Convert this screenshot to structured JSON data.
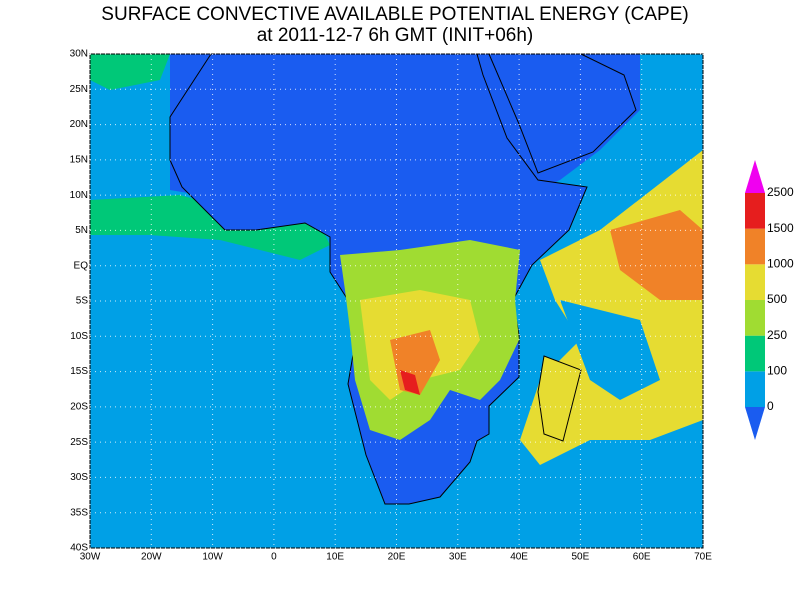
{
  "map": {
    "title": [
      "SURFACE CONVECTIVE AVAILABLE POTENTIAL ENERGY (CAPE)",
      "at 2011-12-7 6h GMT (INIT+06h)"
    ],
    "lon_ticks": [
      {
        "value": -30,
        "label": "30W"
      },
      {
        "value": -20,
        "label": "20W"
      },
      {
        "value": -10,
        "label": "10W"
      },
      0,
      {
        "value": 10,
        "label": "10E"
      },
      {
        "value": 20,
        "label": "20E"
      },
      {
        "value": 30,
        "label": "30E"
      },
      {
        "value": 40,
        "label": "40E"
      },
      {
        "value": 50,
        "label": "50E"
      },
      {
        "value": 60,
        "label": "60E"
      },
      {
        "value": 70,
        "label": "70E"
      }
    ],
    "lat_ticks": [
      {
        "value": -40,
        "label": "40S"
      },
      {
        "value": -35,
        "label": "35S"
      },
      {
        "value": -30,
        "label": "30S"
      },
      {
        "value": -25,
        "label": "25S"
      },
      {
        "value": -20,
        "label": "20S"
      },
      {
        "value": -15,
        "label": "15S"
      },
      {
        "value": -10,
        "label": "10S"
      },
      {
        "value": -5,
        "label": "5S"
      },
      {
        "value": 0,
        "label": "EQ"
      },
      {
        "value": 5,
        "label": "5N"
      },
      {
        "value": 10,
        "label": "10N"
      },
      {
        "value": 15,
        "label": "15N"
      },
      {
        "value": 20,
        "label": "20N"
      },
      {
        "value": 25,
        "label": "25N"
      },
      {
        "value": 30,
        "label": "30N"
      }
    ],
    "lonlim": [
      -30,
      70
    ],
    "latlim": [
      -40,
      30
    ],
    "colorbar": {
      "levels": [
        0,
        100,
        250,
        500,
        1000,
        1500,
        2500
      ],
      "colors": [
        "#1a5cf0",
        "#00a0e6",
        "#00c878",
        "#a0dc32",
        "#e6dc32",
        "#f08228",
        "#e61e1e",
        "#f000f0"
      ]
    }
  }
}
